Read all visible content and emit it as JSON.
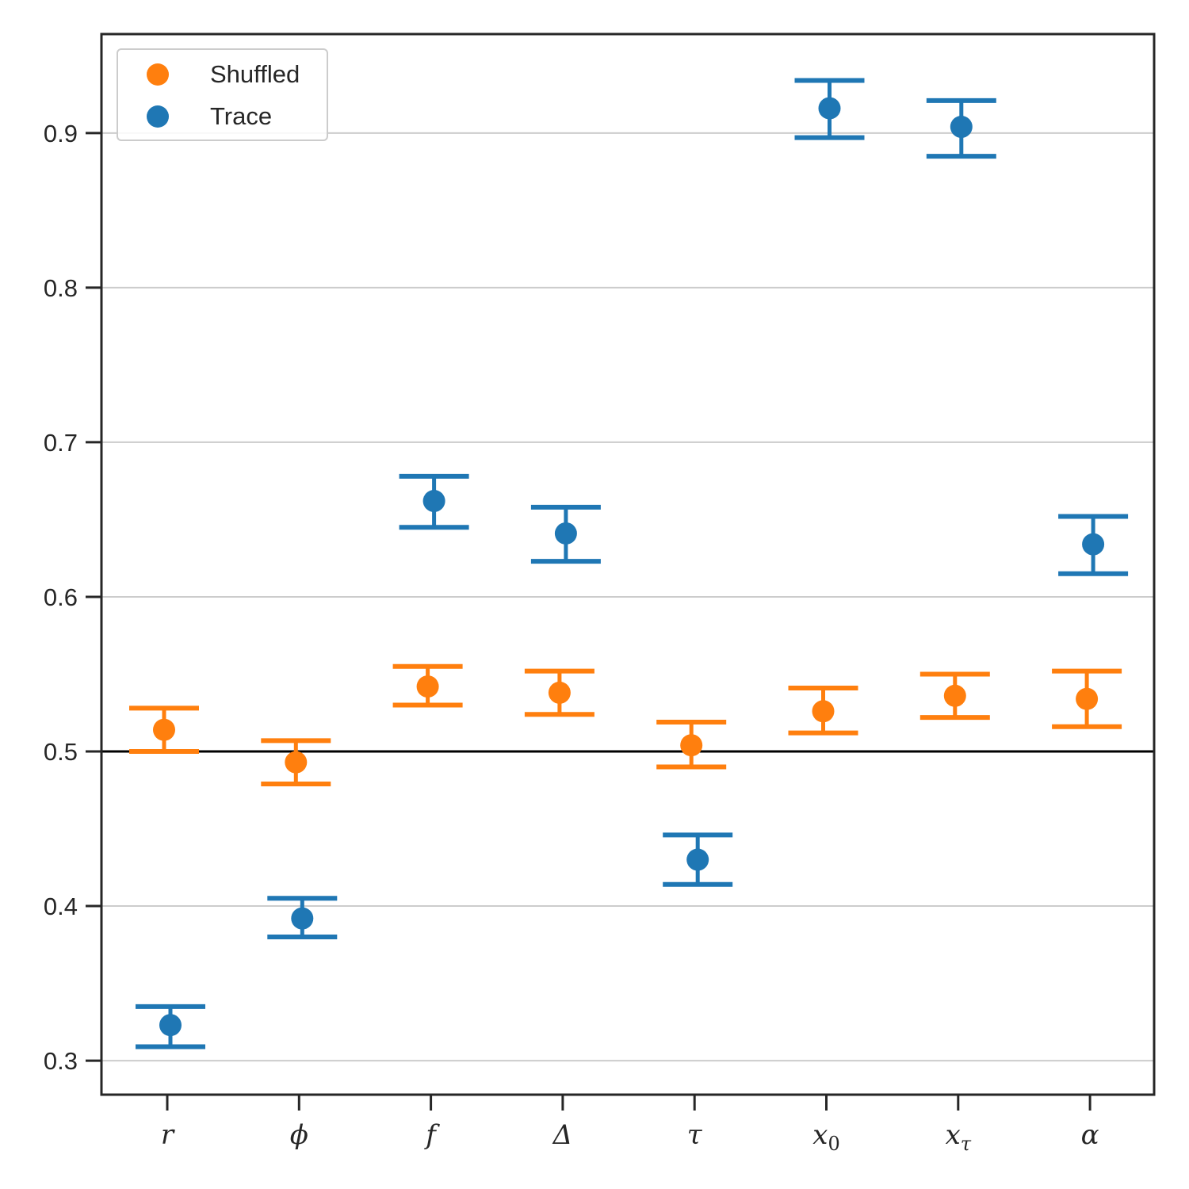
{
  "chart_data": {
    "type": "scatter",
    "subtype": "errorbar",
    "title": "",
    "xlabel": "",
    "ylabel": "",
    "categories": [
      {
        "base": "r",
        "sub": ""
      },
      {
        "base": "ϕ",
        "sub": ""
      },
      {
        "base": "f",
        "sub": ""
      },
      {
        "base": "Δ",
        "sub": ""
      },
      {
        "base": "τ",
        "sub": ""
      },
      {
        "base": "x",
        "sub": "0"
      },
      {
        "base": "x",
        "sub": "τ"
      },
      {
        "base": "α",
        "sub": ""
      }
    ],
    "ylim": [
      0.278,
      0.964
    ],
    "yticks": [
      0.3,
      0.4,
      0.5,
      0.6,
      0.7,
      0.8,
      0.9
    ],
    "ytick_labels": [
      "0.3",
      "0.4",
      "0.5",
      "0.6",
      "0.7",
      "0.8",
      "0.9"
    ],
    "reference_line": 0.5,
    "grid": {
      "y": true,
      "x": false
    },
    "legend": {
      "position": "top-left"
    },
    "series": [
      {
        "name": "Shuffled",
        "color": "#ff7f0e",
        "values": [
          0.514,
          0.493,
          0.542,
          0.538,
          0.504,
          0.526,
          0.536,
          0.534
        ],
        "lower": [
          0.5,
          0.479,
          0.53,
          0.524,
          0.49,
          0.512,
          0.522,
          0.516
        ],
        "upper": [
          0.528,
          0.507,
          0.555,
          0.552,
          0.519,
          0.541,
          0.55,
          0.552
        ]
      },
      {
        "name": "Trace",
        "color": "#1f77b4",
        "values": [
          0.323,
          0.392,
          0.662,
          0.641,
          0.43,
          0.916,
          0.904,
          0.634
        ],
        "lower": [
          0.309,
          0.38,
          0.645,
          0.623,
          0.414,
          0.897,
          0.885,
          0.615
        ],
        "upper": [
          0.335,
          0.405,
          0.678,
          0.658,
          0.446,
          0.934,
          0.921,
          0.652
        ]
      }
    ]
  }
}
